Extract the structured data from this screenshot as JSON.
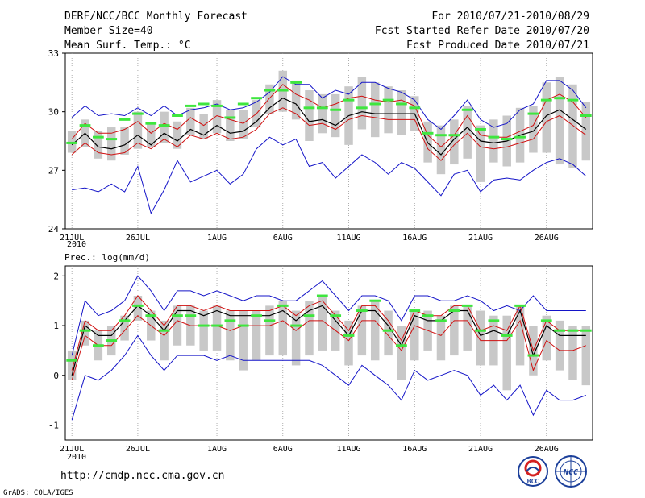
{
  "header": {
    "title": "DERF/NCC/BCC Monthly Forecast",
    "member_size": "Member Size=40",
    "period": "For 2010/07/21-2010/08/29",
    "refer_date": "Fcst Started Refer Date 2010/07/20",
    "produced_date": "Fcst Produced Date 2010/07/21"
  },
  "footer": {
    "url": "http://cmdp.ncc.cma.gov.cn",
    "grads": "GrADS: COLA/IGES",
    "logo_left_text": "BCC",
    "logo_right_text": "NCC"
  },
  "colors": {
    "envelope": "#1414c8",
    "spread": "#d01010",
    "mean": "#000000",
    "observed": "#3ee63e",
    "boxes": "#c8c8c8"
  },
  "chart_data": [
    {
      "type": "line",
      "title": "Mean Surf. Temp.: °C",
      "x": [
        "21JUL",
        "22JUL",
        "23JUL",
        "24JUL",
        "25JUL",
        "26JUL",
        "27JUL",
        "28JUL",
        "29JUL",
        "30JUL",
        "31JUL",
        "1AUG",
        "2AUG",
        "3AUG",
        "4AUG",
        "5AUG",
        "6AUG",
        "7AUG",
        "8AUG",
        "9AUG",
        "10AUG",
        "11AUG",
        "12AUG",
        "13AUG",
        "14AUG",
        "15AUG",
        "16AUG",
        "17AUG",
        "18AUG",
        "19AUG",
        "20AUG",
        "21AUG",
        "22AUG",
        "23AUG",
        "24AUG",
        "25AUG",
        "26AUG",
        "27AUG",
        "28AUG",
        "29AUG"
      ],
      "xtick_labels": [
        "21JUL",
        "26JUL",
        "1AUG",
        "6AUG",
        "11AUG",
        "16AUG",
        "21AUG",
        "26AUG"
      ],
      "xtick_index": [
        0,
        5,
        11,
        16,
        21,
        26,
        31,
        36
      ],
      "year_label": "2010",
      "ylim": [
        24,
        33
      ],
      "yticks": [
        "24",
        "27",
        "30",
        "33"
      ],
      "series": [
        {
          "name": "max",
          "values": [
            29.7,
            30.3,
            29.8,
            29.9,
            29.8,
            30.2,
            29.8,
            30.3,
            29.8,
            30.1,
            30.2,
            30.4,
            30.1,
            30.2,
            30.5,
            31.0,
            31.8,
            31.4,
            31.4,
            30.7,
            31.1,
            30.9,
            31.5,
            31.5,
            31.2,
            31.0,
            30.6,
            29.6,
            29.1,
            29.8,
            30.6,
            29.6,
            29.2,
            29.4,
            30.1,
            30.4,
            31.6,
            31.6,
            31.1,
            30.2
          ]
        },
        {
          "name": "upper",
          "values": [
            28.6,
            29.4,
            28.9,
            28.9,
            29.1,
            29.5,
            28.9,
            29.4,
            29.1,
            29.7,
            29.3,
            29.8,
            29.6,
            29.4,
            29.9,
            30.7,
            31.4,
            30.9,
            30.6,
            30.2,
            30.4,
            30.7,
            30.8,
            30.6,
            30.5,
            30.6,
            30.3,
            28.8,
            28.2,
            28.8,
            29.8,
            28.8,
            28.7,
            28.7,
            29.0,
            29.3,
            30.6,
            30.9,
            30.5,
            29.7
          ]
        },
        {
          "name": "mean",
          "values": [
            28.3,
            28.9,
            28.2,
            28.1,
            28.3,
            28.8,
            28.3,
            28.9,
            28.5,
            29.1,
            28.8,
            29.3,
            28.9,
            29.0,
            29.5,
            30.2,
            30.7,
            30.4,
            29.5,
            29.6,
            29.3,
            29.8,
            30.0,
            29.9,
            29.9,
            29.9,
            29.9,
            28.4,
            27.8,
            28.6,
            29.2,
            28.5,
            28.4,
            28.5,
            28.8,
            29.0,
            29.8,
            30.1,
            29.6,
            29.1
          ]
        },
        {
          "name": "lower",
          "values": [
            27.8,
            28.4,
            27.9,
            27.8,
            27.9,
            28.4,
            28.1,
            28.6,
            28.2,
            28.8,
            28.6,
            28.9,
            28.6,
            28.7,
            29.1,
            29.9,
            30.2,
            29.9,
            29.3,
            29.4,
            29.1,
            29.6,
            29.8,
            29.7,
            29.6,
            29.6,
            29.6,
            28.1,
            27.5,
            28.3,
            28.9,
            28.2,
            28.1,
            28.2,
            28.4,
            28.6,
            29.5,
            29.8,
            29.3,
            28.8
          ]
        },
        {
          "name": "min",
          "values": [
            26.0,
            26.1,
            25.9,
            26.3,
            25.9,
            27.2,
            24.8,
            26.0,
            27.5,
            26.4,
            26.7,
            27.0,
            26.3,
            26.8,
            28.1,
            28.7,
            28.3,
            28.6,
            27.2,
            27.4,
            26.6,
            27.2,
            27.8,
            27.4,
            26.8,
            27.4,
            27.1,
            26.4,
            25.7,
            26.8,
            27.0,
            25.9,
            26.5,
            26.6,
            26.5,
            27.0,
            27.4,
            27.6,
            27.3,
            26.7
          ]
        },
        {
          "name": "observed",
          "values": [
            28.4,
            29.3,
            28.7,
            28.6,
            29.6,
            29.9,
            29.4,
            29.3,
            29.8,
            30.3,
            30.4,
            30.3,
            29.7,
            30.4,
            30.7,
            31.1,
            31.1,
            31.5,
            30.2,
            30.2,
            30.1,
            30.6,
            30.2,
            30.4,
            30.6,
            30.4,
            30.2,
            28.9,
            28.8,
            28.8,
            30.1,
            29.1,
            28.7,
            28.6,
            28.7,
            29.9,
            30.6,
            30.7,
            30.6,
            29.8
          ]
        }
      ],
      "boxes": {
        "low": [
          27.9,
          28.2,
          27.6,
          27.5,
          27.8,
          28.1,
          28.2,
          28.4,
          28.1,
          28.8,
          28.6,
          28.9,
          28.5,
          28.6,
          29.2,
          29.9,
          30.0,
          29.6,
          28.5,
          28.9,
          28.7,
          28.3,
          29.1,
          28.7,
          28.9,
          28.8,
          29.0,
          27.4,
          26.8,
          27.3,
          27.6,
          26.4,
          27.4,
          27.2,
          27.4,
          27.9,
          27.9,
          27.3,
          27.1,
          27.5
        ],
        "high": [
          29.0,
          29.6,
          29.0,
          29.2,
          29.2,
          30.0,
          29.4,
          30.0,
          29.5,
          30.2,
          29.9,
          30.6,
          30.1,
          30.1,
          30.6,
          31.4,
          32.1,
          31.6,
          31.1,
          30.9,
          30.9,
          31.3,
          31.8,
          31.5,
          31.3,
          31.1,
          30.8,
          29.5,
          29.3,
          29.6,
          30.3,
          29.3,
          29.6,
          29.8,
          30.2,
          30.3,
          31.5,
          31.8,
          31.4,
          30.5
        ]
      }
    },
    {
      "type": "line",
      "title": "Prec.: log(mm/d)",
      "x": [
        "21JUL",
        "22JUL",
        "23JUL",
        "24JUL",
        "25JUL",
        "26JUL",
        "27JUL",
        "28JUL",
        "29JUL",
        "30JUL",
        "31JUL",
        "1AUG",
        "2AUG",
        "3AUG",
        "4AUG",
        "5AUG",
        "6AUG",
        "7AUG",
        "8AUG",
        "9AUG",
        "10AUG",
        "11AUG",
        "12AUG",
        "13AUG",
        "14AUG",
        "15AUG",
        "16AUG",
        "17AUG",
        "18AUG",
        "19AUG",
        "20AUG",
        "21AUG",
        "22AUG",
        "23AUG",
        "24AUG",
        "25AUG",
        "26AUG",
        "27AUG",
        "28AUG",
        "29AUG"
      ],
      "xtick_labels": [
        "21JUL",
        "26JUL",
        "1AUG",
        "6AUG",
        "11AUG",
        "16AUG",
        "21AUG",
        "26AUG"
      ],
      "xtick_index": [
        0,
        5,
        11,
        16,
        21,
        26,
        31,
        36
      ],
      "year_label": "2010",
      "ylim": [
        -1.3,
        2.2
      ],
      "yticks": [
        "-1",
        "0",
        "1",
        "2"
      ],
      "series": [
        {
          "name": "max",
          "values": [
            0.4,
            1.5,
            1.2,
            1.3,
            1.5,
            2.0,
            1.7,
            1.3,
            1.7,
            1.7,
            1.6,
            1.7,
            1.6,
            1.5,
            1.6,
            1.6,
            1.5,
            1.5,
            1.7,
            1.9,
            1.6,
            1.3,
            1.6,
            1.6,
            1.5,
            1.1,
            1.6,
            1.6,
            1.5,
            1.5,
            1.6,
            1.5,
            1.3,
            1.4,
            1.3,
            1.6,
            1.3,
            1.3,
            1.3,
            1.3
          ]
        },
        {
          "name": "upper",
          "values": [
            0.1,
            1.1,
            0.9,
            0.9,
            1.2,
            1.6,
            1.3,
            1.0,
            1.4,
            1.4,
            1.3,
            1.4,
            1.3,
            1.3,
            1.3,
            1.3,
            1.4,
            1.2,
            1.4,
            1.5,
            1.2,
            0.9,
            1.4,
            1.4,
            1.1,
            0.7,
            1.3,
            1.2,
            1.2,
            1.4,
            1.4,
            0.9,
            1.0,
            0.9,
            1.4,
            0.5,
            1.1,
            0.9,
            0.9,
            0.9
          ]
        },
        {
          "name": "mean",
          "values": [
            0.0,
            1.0,
            0.8,
            0.8,
            1.1,
            1.4,
            1.2,
            0.9,
            1.3,
            1.3,
            1.2,
            1.3,
            1.2,
            1.2,
            1.2,
            1.2,
            1.3,
            1.1,
            1.3,
            1.4,
            1.1,
            0.8,
            1.3,
            1.3,
            1.0,
            0.6,
            1.2,
            1.1,
            1.1,
            1.3,
            1.3,
            0.8,
            0.9,
            0.8,
            1.3,
            0.4,
            1.0,
            0.8,
            0.8,
            0.8
          ]
        },
        {
          "name": "lower",
          "values": [
            -0.1,
            0.8,
            0.6,
            0.6,
            0.9,
            1.2,
            1.0,
            0.8,
            1.1,
            1.0,
            1.0,
            1.0,
            0.9,
            1.0,
            1.0,
            1.0,
            1.1,
            0.9,
            1.1,
            1.1,
            0.9,
            0.7,
            1.1,
            1.1,
            0.8,
            0.5,
            1.0,
            0.9,
            0.8,
            1.1,
            1.1,
            0.7,
            0.7,
            0.7,
            1.1,
            0.1,
            0.7,
            0.5,
            0.5,
            0.6
          ]
        },
        {
          "name": "min",
          "values": [
            -0.9,
            0.0,
            -0.1,
            0.1,
            0.4,
            0.8,
            0.4,
            0.1,
            0.4,
            0.4,
            0.4,
            0.3,
            0.4,
            0.3,
            0.3,
            0.3,
            0.3,
            0.3,
            0.3,
            0.2,
            0.0,
            -0.2,
            0.2,
            0.0,
            -0.2,
            -0.5,
            0.1,
            -0.1,
            0.0,
            0.1,
            0.0,
            -0.4,
            -0.2,
            -0.5,
            -0.2,
            -0.8,
            -0.3,
            -0.5,
            -0.5,
            -0.4
          ]
        },
        {
          "name": "observed",
          "values": [
            0.3,
            0.9,
            0.6,
            0.7,
            1.1,
            1.4,
            1.2,
            0.9,
            1.2,
            1.2,
            1.0,
            1.0,
            1.1,
            1.0,
            1.2,
            1.1,
            1.4,
            1.0,
            1.2,
            1.6,
            1.2,
            0.8,
            1.3,
            1.5,
            0.9,
            0.6,
            1.3,
            1.2,
            1.1,
            1.3,
            1.4,
            0.9,
            1.1,
            0.8,
            1.4,
            0.4,
            1.1,
            0.9,
            0.9,
            0.9
          ]
        }
      ],
      "boxes": {
        "low": [
          -0.1,
          0.6,
          0.3,
          0.4,
          0.7,
          1.1,
          0.7,
          0.3,
          0.6,
          0.6,
          0.5,
          0.5,
          0.3,
          0.1,
          0.3,
          0.4,
          0.4,
          0.2,
          0.4,
          0.5,
          0.5,
          0.2,
          0.4,
          0.3,
          0.4,
          -0.1,
          0.3,
          0.5,
          0.3,
          0.4,
          0.5,
          0.2,
          0.2,
          -0.3,
          0.2,
          0.0,
          0.3,
          0.1,
          -0.1,
          -0.2
        ],
        "high": [
          0.5,
          1.1,
          0.9,
          1.0,
          1.2,
          1.6,
          1.3,
          1.1,
          1.4,
          1.4,
          1.3,
          1.4,
          1.3,
          1.3,
          1.3,
          1.4,
          1.5,
          1.3,
          1.5,
          1.6,
          1.3,
          1.1,
          1.4,
          1.5,
          1.3,
          1.0,
          1.3,
          1.3,
          1.2,
          1.4,
          1.4,
          1.3,
          1.2,
          1.2,
          1.4,
          1.0,
          1.2,
          1.1,
          1.0,
          1.0
        ]
      }
    }
  ]
}
